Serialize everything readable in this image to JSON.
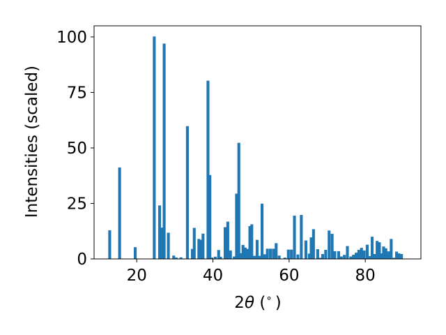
{
  "chart_data": {
    "type": "bar",
    "xlabel_main": "2",
    "xlabel_symbol": "θ",
    "xlabel_unit": " (",
    "xlabel_degree": "∘",
    "xlabel_close": ")",
    "ylabel": "Intensities (scaled)",
    "xlim": [
      8.8,
      94.6
    ],
    "ylim": [
      0,
      105
    ],
    "xticks": [
      20,
      40,
      60,
      80
    ],
    "yticks": [
      0,
      25,
      50,
      75,
      100
    ],
    "grid": false,
    "bar_width": 0.75,
    "bar_color": "#1f77b4",
    "x": [
      12.9,
      15.5,
      19.6,
      24.6,
      26.0,
      26.6,
      27.2,
      28.3,
      29.7,
      30.4,
      31.6,
      33.3,
      34.6,
      35.1,
      36.3,
      36.9,
      37.4,
      38.7,
      39.2,
      39.7,
      40.6,
      41.5,
      42.0,
      43.2,
      43.9,
      44.6,
      45.6,
      46.2,
      46.8,
      47.3,
      47.9,
      48.5,
      49.1,
      49.7,
      50.2,
      50.9,
      51.6,
      52.3,
      52.9,
      53.6,
      54.3,
      55.1,
      55.9,
      56.6,
      57.4,
      58.9,
      59.8,
      60.6,
      61.4,
      62.3,
      63.2,
      64.4,
      65.3,
      65.8,
      66.4,
      67.5,
      68.2,
      68.8,
      69.6,
      70.5,
      71.3,
      72.0,
      73.0,
      73.7,
      74.5,
      75.3,
      76.2,
      76.9,
      77.6,
      78.3,
      79.0,
      79.7,
      80.5,
      81.2,
      81.8,
      82.4,
      83.1,
      83.7,
      84.2,
      84.8,
      85.4,
      86.1,
      86.8,
      87.5,
      88.2,
      88.8,
      89.5
    ],
    "values": [
      12.9,
      41.2,
      5.3,
      100.2,
      24.1,
      14.1,
      97.0,
      11.8,
      1.5,
      0.6,
      0.7,
      59.8,
      4.5,
      14.0,
      9.0,
      8.6,
      11.4,
      80.3,
      37.8,
      0.6,
      1.0,
      4.0,
      1.0,
      14.3,
      16.8,
      3.8,
      1.1,
      29.4,
      52.3,
      2.6,
      6.3,
      5.1,
      4.5,
      14.8,
      15.6,
      1.4,
      8.6,
      1.4,
      24.9,
      2.1,
      4.6,
      4.6,
      4.6,
      7.1,
      1.5,
      0.6,
      4.2,
      4.2,
      19.5,
      2.0,
      19.8,
      8.3,
      2.4,
      9.7,
      13.4,
      4.4,
      0.5,
      2.2,
      4.1,
      12.8,
      11.3,
      3.5,
      3.5,
      1.1,
      1.8,
      5.8,
      1.1,
      1.9,
      2.8,
      4.1,
      5.0,
      3.8,
      6.4,
      1.3,
      10.0,
      2.2,
      8.1,
      7.5,
      2.5,
      5.6,
      4.8,
      3.4,
      9.0,
      0.5,
      3.3,
      2.5,
      2.2
    ]
  }
}
